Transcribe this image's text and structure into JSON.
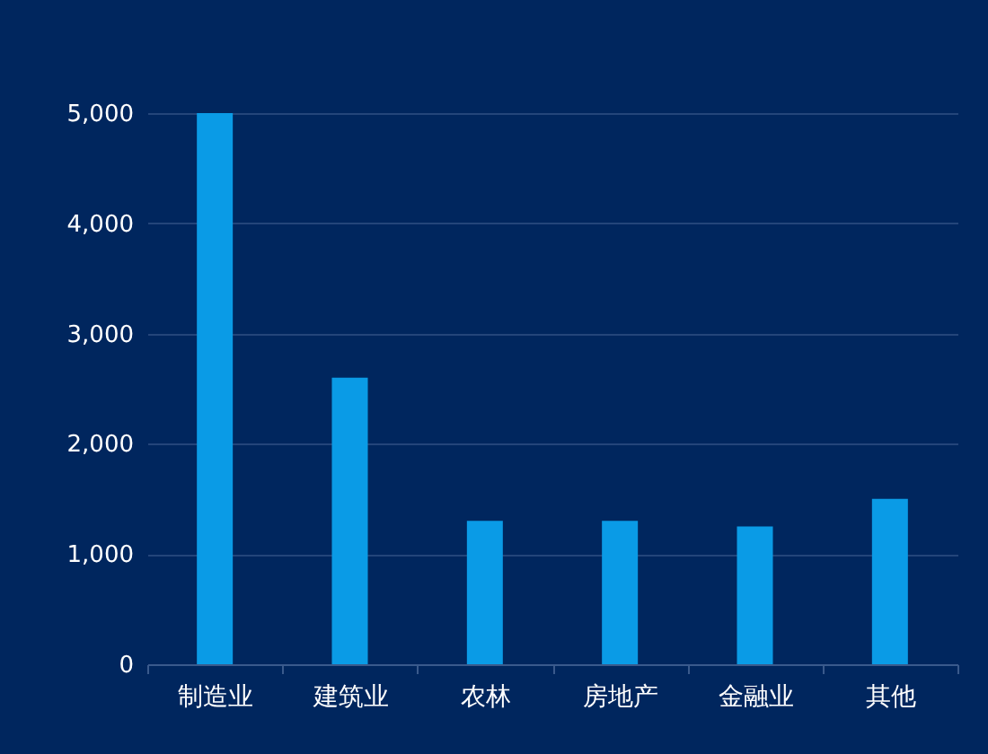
{
  "chart_data": {
    "type": "bar",
    "categories": [
      "制造业",
      "建筑业",
      "农林",
      "房地产",
      "金融业",
      "其他"
    ],
    "values": [
      5000,
      2600,
      1300,
      1300,
      1250,
      1500
    ],
    "color": "#0a9be6",
    "ylim": [
      0,
      5000
    ],
    "yticks": [
      {
        "value": 0,
        "label": "0"
      },
      {
        "value": 1000,
        "label": "1,000"
      },
      {
        "value": 2000,
        "label": "2,000"
      },
      {
        "value": 3000,
        "label": "3,000"
      },
      {
        "value": 4000,
        "label": "4,000"
      },
      {
        "value": 5000,
        "label": "5,000"
      }
    ],
    "grid": "y"
  }
}
